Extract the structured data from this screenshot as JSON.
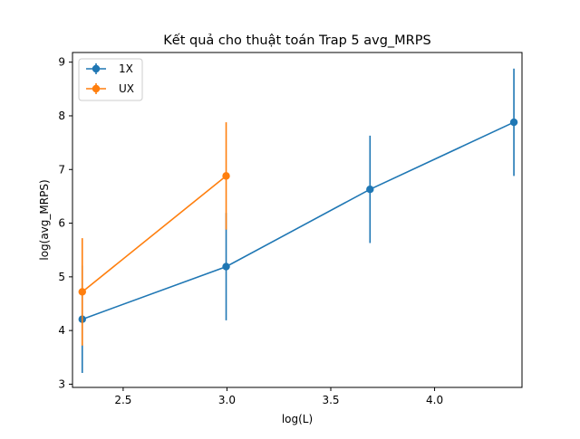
{
  "chart_data": {
    "type": "line",
    "title": "Kết quả cho thuật toán Trap 5 avg_MRPS",
    "xlabel": "log(L)",
    "ylabel": "log(avg_MRPS)",
    "xlim": [
      2.256,
      4.421
    ],
    "ylim": [
      2.94,
      9.18
    ],
    "xticks": [
      2.5,
      3.0,
      3.5,
      4.0
    ],
    "xtick_labels": [
      "2.5",
      "3.0",
      "3.5",
      "4.0"
    ],
    "yticks": [
      3,
      4,
      5,
      6,
      7,
      8,
      9
    ],
    "ytick_labels": [
      "3",
      "4",
      "5",
      "6",
      "7",
      "8",
      "9"
    ],
    "grid": false,
    "legend_position": "upper-left",
    "series": [
      {
        "name": "1X",
        "color": "#1f77b4",
        "marker": "circle",
        "x": [
          2.303,
          2.996,
          3.689,
          4.382
        ],
        "y": [
          4.21,
          5.19,
          6.63,
          7.88
        ],
        "yerr": [
          1.0,
          1.0,
          1.0,
          1.0
        ]
      },
      {
        "name": "UX",
        "color": "#ff7f0e",
        "marker": "circle",
        "x": [
          2.303,
          2.996
        ],
        "y": [
          4.72,
          6.88
        ],
        "yerr": [
          1.0,
          1.0
        ]
      }
    ]
  }
}
